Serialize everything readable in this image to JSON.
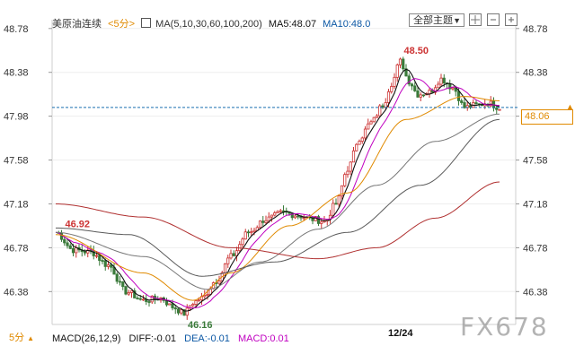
{
  "header": {
    "instrument": "美原油连续",
    "period": "<5分>",
    "ma_label": "MA(5,10,30,60,100,200)",
    "ma5_label": "MA5:48.07",
    "ma10_label": "MA10:48.0"
  },
  "toolbar": {
    "theme_label": "全部主题"
  },
  "price_tag": "48.06",
  "bottom": {
    "period_label": "5分",
    "macd_label": "MACD(26,12,9)",
    "diff_label": "DIFF:-0.01",
    "dea_label": "DEA:-0.01",
    "macd_value_label": "MACD:0.01",
    "date_label": "12/24"
  },
  "watermark": "FX678",
  "colors": {
    "up": "#cc3333",
    "down": "#3a7a3a",
    "ma5": "#111111",
    "ma10": "#c000c0",
    "ma30": "#e08a00",
    "ma60": "#777777",
    "ma100": "#5a5a5a",
    "ma200": "#b03030",
    "price_line": "#1a6fb0",
    "accent": "#e08a00"
  },
  "chart_data": {
    "type": "line",
    "y_ticks": [
      "48.78",
      "48.38",
      "47.98",
      "47.58",
      "47.18",
      "46.78",
      "46.38"
    ],
    "ylim": [
      46.08,
      48.86
    ],
    "x_tick_labels": [
      "12/24"
    ],
    "last_price": 48.06,
    "annotations": [
      {
        "text": "48.50",
        "type": "high"
      },
      {
        "text": "46.92",
        "type": "local_high"
      },
      {
        "text": "46.16",
        "type": "low"
      }
    ],
    "bar_count": 112,
    "price_anchors": [
      [
        0,
        46.92
      ],
      [
        6,
        46.76
      ],
      [
        12,
        46.74
      ],
      [
        18,
        46.62
      ],
      [
        24,
        46.38
      ],
      [
        30,
        46.3
      ],
      [
        36,
        46.32
      ],
      [
        40,
        46.24
      ],
      [
        44,
        46.18
      ],
      [
        47,
        46.28
      ],
      [
        50,
        46.32
      ],
      [
        55,
        46.48
      ],
      [
        60,
        46.7
      ],
      [
        66,
        46.92
      ],
      [
        72,
        47.04
      ],
      [
        78,
        47.1
      ],
      [
        82,
        47.08
      ],
      [
        88,
        47.04
      ],
      [
        92,
        47.02
      ],
      [
        96,
        47.18
      ],
      [
        100,
        47.5
      ],
      [
        104,
        47.78
      ],
      [
        108,
        47.92
      ],
      [
        112,
        48.08
      ],
      [
        115,
        48.28
      ],
      [
        118,
        48.48
      ],
      [
        121,
        48.3
      ],
      [
        124,
        48.18
      ],
      [
        128,
        48.2
      ],
      [
        132,
        48.32
      ],
      [
        136,
        48.24
      ],
      [
        140,
        48.06
      ],
      [
        144,
        48.08
      ],
      [
        148,
        48.1
      ],
      [
        152,
        48.06
      ]
    ],
    "ma_series": [
      {
        "name": "MA30",
        "x": [
          0,
          30,
          47,
          60,
          80,
          100,
          120,
          140,
          152
        ],
        "values": [
          46.9,
          46.55,
          46.3,
          46.55,
          46.98,
          47.28,
          47.95,
          48.16,
          48.12
        ]
      },
      {
        "name": "MA60",
        "x": [
          0,
          30,
          52,
          70,
          90,
          110,
          130,
          152
        ],
        "values": [
          46.92,
          46.7,
          46.4,
          46.65,
          46.95,
          47.35,
          47.75,
          48.0
        ]
      },
      {
        "name": "MA100",
        "x": [
          0,
          25,
          50,
          75,
          100,
          125,
          152
        ],
        "values": [
          46.96,
          46.9,
          46.52,
          46.65,
          46.92,
          47.35,
          47.95
        ]
      },
      {
        "name": "MA200",
        "x": [
          0,
          30,
          60,
          90,
          110,
          130,
          152
        ],
        "values": [
          47.18,
          47.06,
          46.78,
          46.68,
          46.78,
          47.05,
          47.38
        ]
      }
    ]
  }
}
